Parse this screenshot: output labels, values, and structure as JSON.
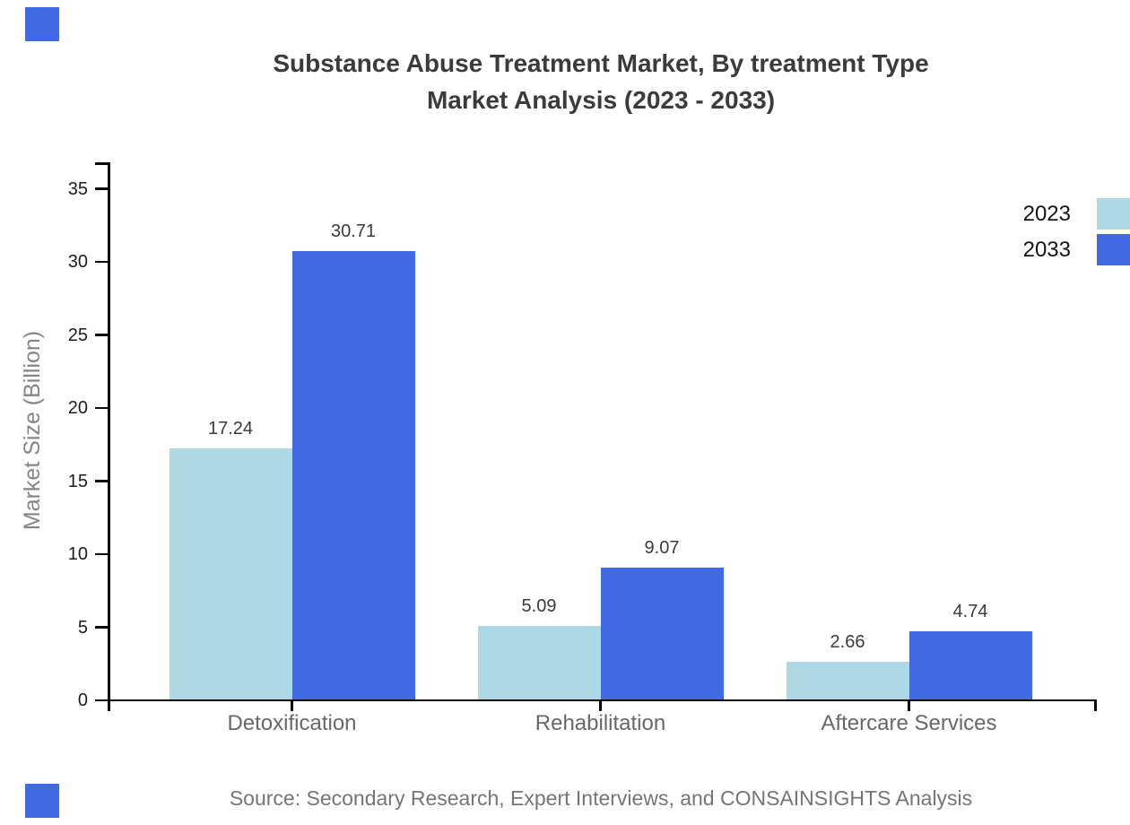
{
  "header": {
    "title_line1": "Substance Abuse Treatment Market, By treatment Type",
    "title_line2": "Market Analysis (2023 - 2033)"
  },
  "footer": {
    "source_text": "Source: Secondary Research, Expert Interviews, and CONSAINSIGHTS Analysis"
  },
  "decorations": {
    "corner_marker_color": "#4169e1"
  },
  "chart_data": {
    "type": "bar",
    "title": "Substance Abuse Treatment Market, By treatment Type Market Analysis (2023 - 2033)",
    "categories": [
      "Detoxification",
      "Rehabilitation",
      "Aftercare Services"
    ],
    "series": [
      {
        "name": "2023",
        "color": "#add8e6",
        "values": [
          17.24,
          5.09,
          2.66
        ]
      },
      {
        "name": "2033",
        "color": "#4169e1",
        "values": [
          30.71,
          9.07,
          4.74
        ]
      }
    ],
    "value_labels": {
      "2023": [
        "17.24",
        "5.09",
        "2.66"
      ],
      "2033": [
        "30.71",
        "9.07",
        "4.74"
      ]
    },
    "xlabel": "",
    "ylabel": "Market Size (Billion)",
    "ylim": [
      0,
      37
    ],
    "yticks": [
      0,
      5,
      10,
      15,
      20,
      25,
      30,
      35
    ],
    "grid": false,
    "legend_position": "top-right",
    "axis_color": "#0a0a0a"
  }
}
